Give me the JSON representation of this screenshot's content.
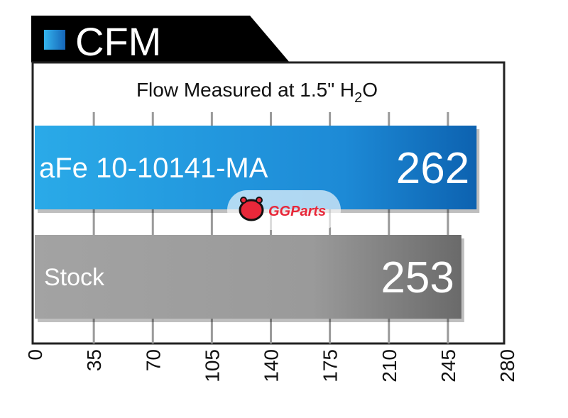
{
  "header": {
    "title": "CFM"
  },
  "watermark": {
    "text": "GGParts"
  },
  "chart_data": {
    "type": "bar",
    "orientation": "horizontal",
    "title": "Flow Measured at 1.5\" H",
    "title_subscript": "2",
    "title_suffix": "O",
    "categories": [
      "aFe 10-10141-MA",
      "Stock"
    ],
    "values": [
      262,
      253
    ],
    "xlim": [
      0,
      280
    ],
    "ticks": [
      0,
      35,
      70,
      105,
      140,
      175,
      210,
      245,
      280
    ],
    "tick_labels": [
      "0",
      "35",
      "70",
      "105",
      "140",
      "175",
      "210",
      "245",
      "280"
    ],
    "grid": true,
    "colors": {
      "aFe 10-10141-MA": "#1a8fd8",
      "Stock": "#9a9a9a"
    }
  }
}
